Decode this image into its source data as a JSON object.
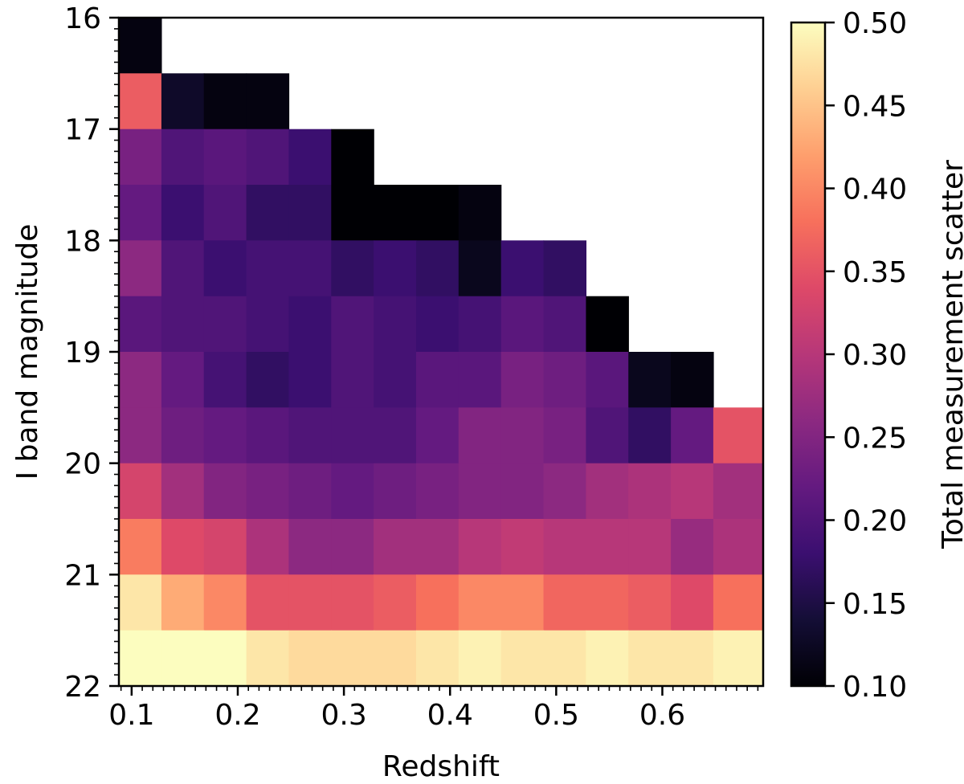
{
  "chart_data": {
    "type": "heatmap",
    "xlabel": "Redshift",
    "ylabel": "I band magnitude",
    "xlim": [
      0.088,
      0.695
    ],
    "ylim": [
      16,
      22
    ],
    "y_inverted": true,
    "x_ticks": [
      0.1,
      0.2,
      0.3,
      0.4,
      0.5,
      0.6
    ],
    "x_tick_labels": [
      "0.1",
      "0.2",
      "0.3",
      "0.4",
      "0.5",
      "0.6"
    ],
    "y_ticks": [
      16,
      17,
      18,
      19,
      20,
      21,
      22
    ],
    "y_tick_labels": [
      "16",
      "17",
      "18",
      "19",
      "20",
      "21",
      "22"
    ],
    "colorbar": {
      "label": "Total measurement scatter",
      "range": [
        0.1,
        0.5
      ],
      "ticks": [
        0.1,
        0.15,
        0.2,
        0.25,
        0.3,
        0.35,
        0.4,
        0.45,
        0.5
      ],
      "tick_labels": [
        "0.10",
        "0.15",
        "0.20",
        "0.25",
        "0.30",
        "0.35",
        "0.40",
        "0.45",
        "0.50"
      ],
      "colormap": "magma"
    },
    "grid": {
      "x_edges": [
        0.088,
        0.128,
        0.168,
        0.208,
        0.248,
        0.288,
        0.328,
        0.368,
        0.408,
        0.448,
        0.488,
        0.528,
        0.568,
        0.608,
        0.648,
        0.695
      ],
      "y_edges": [
        16.0,
        16.5,
        17.0,
        17.5,
        18.0,
        18.5,
        19.0,
        19.5,
        20.0,
        20.5,
        21.0,
        21.5,
        22.0
      ],
      "values": [
        [
          0.11,
          null,
          null,
          null,
          null,
          null,
          null,
          null,
          null,
          null,
          null,
          null,
          null,
          null,
          null
        ],
        [
          0.36,
          0.13,
          0.11,
          0.11,
          null,
          null,
          null,
          null,
          null,
          null,
          null,
          null,
          null,
          null,
          null
        ],
        [
          0.24,
          0.2,
          0.21,
          0.2,
          0.18,
          0.1,
          null,
          null,
          null,
          null,
          null,
          null,
          null,
          null,
          null
        ],
        [
          0.22,
          0.18,
          0.2,
          0.17,
          0.17,
          0.1,
          0.1,
          0.1,
          0.11,
          null,
          null,
          null,
          null,
          null,
          null
        ],
        [
          0.26,
          0.2,
          0.18,
          0.19,
          0.19,
          0.17,
          0.18,
          0.17,
          0.12,
          0.18,
          0.17,
          null,
          null,
          null,
          null
        ],
        [
          0.21,
          0.2,
          0.2,
          0.19,
          0.18,
          0.2,
          0.19,
          0.18,
          0.19,
          0.21,
          0.2,
          0.1,
          null,
          null,
          null
        ],
        [
          0.26,
          0.22,
          0.19,
          0.17,
          0.18,
          0.2,
          0.19,
          0.21,
          0.21,
          0.24,
          0.23,
          0.21,
          0.12,
          0.11,
          null
        ],
        [
          0.26,
          0.23,
          0.22,
          0.21,
          0.2,
          0.2,
          0.2,
          0.22,
          0.25,
          0.25,
          0.24,
          0.2,
          0.17,
          0.22,
          0.35
        ],
        [
          0.33,
          0.28,
          0.25,
          0.24,
          0.23,
          0.22,
          0.23,
          0.24,
          0.25,
          0.25,
          0.26,
          0.28,
          0.29,
          0.3,
          0.28
        ],
        [
          0.39,
          0.34,
          0.33,
          0.29,
          0.26,
          0.26,
          0.28,
          0.28,
          0.3,
          0.31,
          0.3,
          0.3,
          0.3,
          0.27,
          0.29
        ],
        [
          0.48,
          0.43,
          0.4,
          0.35,
          0.35,
          0.35,
          0.36,
          0.38,
          0.4,
          0.4,
          0.37,
          0.37,
          0.36,
          0.34,
          0.38
        ],
        [
          0.5,
          0.5,
          0.5,
          0.48,
          0.47,
          0.47,
          0.47,
          0.48,
          0.49,
          0.48,
          0.48,
          0.49,
          0.48,
          0.48,
          0.49
        ]
      ]
    }
  }
}
